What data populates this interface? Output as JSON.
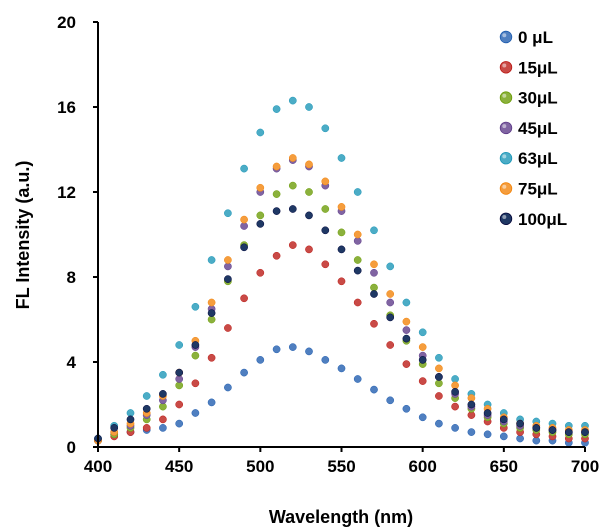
{
  "chart_data": {
    "type": "scatter",
    "title": "",
    "xlabel": "Wavelength (nm)",
    "ylabel": "FL Intensity (a.u.)",
    "xlim": [
      400,
      700
    ],
    "ylim": [
      0,
      20
    ],
    "x_ticks": [
      "400",
      "450",
      "500",
      "550",
      "600",
      "650",
      "700"
    ],
    "y_ticks": [
      "0",
      "4",
      "8",
      "12",
      "16",
      "20"
    ],
    "grid": false,
    "legend_position": "top-right",
    "x": [
      400,
      410,
      420,
      430,
      440,
      450,
      460,
      470,
      480,
      490,
      500,
      510,
      520,
      530,
      540,
      550,
      560,
      570,
      580,
      590,
      600,
      610,
      620,
      630,
      640,
      650,
      660,
      670,
      680,
      690,
      700
    ],
    "series": [
      {
        "name": "0 μL",
        "color": "#4f7fc0",
        "values": [
          0.3,
          0.6,
          0.7,
          0.8,
          0.9,
          1.1,
          1.6,
          2.1,
          2.8,
          3.5,
          4.1,
          4.6,
          4.7,
          4.5,
          4.1,
          3.7,
          3.2,
          2.7,
          2.2,
          1.8,
          1.4,
          1.1,
          0.9,
          0.7,
          0.6,
          0.5,
          0.4,
          0.3,
          0.3,
          0.2,
          0.2
        ]
      },
      {
        "name": "15μL",
        "color": "#c94a46",
        "values": [
          0.3,
          0.5,
          0.7,
          0.9,
          1.3,
          2.0,
          3.0,
          4.2,
          5.6,
          7.0,
          8.2,
          9.0,
          9.5,
          9.3,
          8.6,
          7.8,
          6.8,
          5.8,
          4.8,
          3.9,
          3.1,
          2.4,
          1.9,
          1.5,
          1.2,
          0.9,
          0.7,
          0.6,
          0.5,
          0.4,
          0.4
        ]
      },
      {
        "name": "30μL",
        "color": "#8bb13c",
        "values": [
          0.3,
          0.6,
          0.9,
          1.3,
          1.9,
          2.9,
          4.3,
          6.0,
          7.8,
          9.5,
          10.9,
          11.9,
          12.3,
          12.0,
          11.2,
          10.1,
          8.8,
          7.5,
          6.2,
          5.0,
          3.9,
          3.0,
          2.3,
          1.8,
          1.4,
          1.1,
          0.9,
          0.8,
          0.7,
          0.6,
          0.6
        ]
      },
      {
        "name": "45μL",
        "color": "#8064a2",
        "values": [
          0.3,
          0.7,
          1.0,
          1.5,
          2.2,
          3.2,
          4.7,
          6.5,
          8.5,
          10.4,
          12.0,
          13.1,
          13.5,
          13.2,
          12.3,
          11.1,
          9.7,
          8.2,
          6.8,
          5.5,
          4.3,
          3.3,
          2.5,
          1.9,
          1.5,
          1.2,
          1.0,
          0.9,
          0.8,
          0.7,
          0.7
        ]
      },
      {
        "name": "63μL",
        "color": "#4bacc6",
        "values": [
          0.4,
          1.0,
          1.6,
          2.4,
          3.4,
          4.8,
          6.6,
          8.8,
          11.0,
          13.1,
          14.8,
          15.9,
          16.3,
          16.0,
          15.0,
          13.6,
          12.0,
          10.2,
          8.5,
          6.8,
          5.4,
          4.2,
          3.2,
          2.5,
          2.0,
          1.6,
          1.3,
          1.2,
          1.1,
          1.0,
          1.0
        ]
      },
      {
        "name": "75μL",
        "color": "#f59d3d",
        "values": [
          0.3,
          0.7,
          1.1,
          1.6,
          2.4,
          3.5,
          5.0,
          6.8,
          8.8,
          10.7,
          12.2,
          13.2,
          13.6,
          13.3,
          12.5,
          11.3,
          10.0,
          8.6,
          7.2,
          5.9,
          4.7,
          3.7,
          2.9,
          2.3,
          1.8,
          1.4,
          1.1,
          1.0,
          0.9,
          0.8,
          0.8
        ]
      },
      {
        "name": "100μL",
        "color": "#1f3864",
        "values": [
          0.4,
          0.9,
          1.3,
          1.8,
          2.5,
          3.5,
          4.8,
          6.3,
          7.9,
          9.4,
          10.5,
          11.1,
          11.2,
          10.9,
          10.2,
          9.3,
          8.3,
          7.2,
          6.1,
          5.1,
          4.1,
          3.3,
          2.6,
          2.0,
          1.6,
          1.3,
          1.1,
          0.9,
          0.8,
          0.7,
          0.7
        ]
      }
    ]
  }
}
